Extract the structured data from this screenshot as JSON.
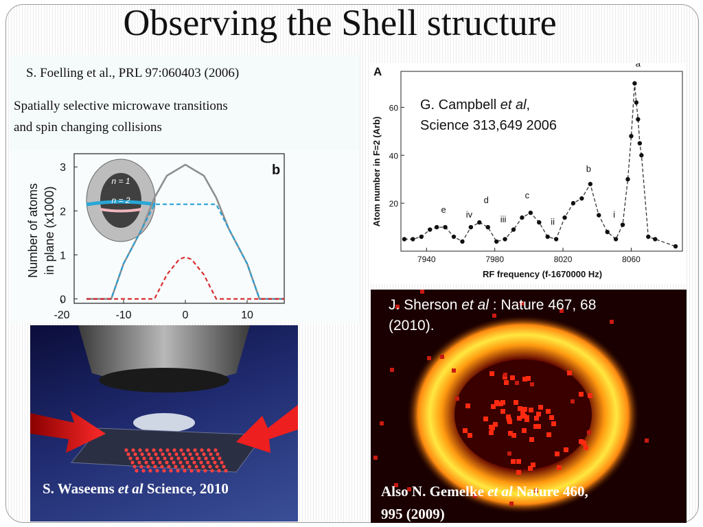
{
  "slide": {
    "title": "Observing the Shell structure"
  },
  "foelling": {
    "citation": "S. Foelling et al., PRL 97:060403 (2006)",
    "desc_line1": "Spatially selective  microwave transitions",
    "desc_line2": "and spin changing collisions",
    "panel_label": "b",
    "y_axis_label_1": "Number of atoms",
    "y_axis_label_2": "in plane (x1000)",
    "y_ticks": [
      "0",
      "1",
      "2",
      "3"
    ],
    "x_ticks": [
      "-20",
      "-10",
      "0",
      "10"
    ],
    "inset_n1": "n = 1",
    "inset_n2": "n = 2"
  },
  "campbell": {
    "panel_label": "A",
    "citation_line1_pre": "G. Campbell ",
    "citation_line1_em": "et al",
    "citation_line1_post": ",",
    "citation_line2": "Science 313,649 2006",
    "y_axis_label": "Atom number in F=2 (Arb)",
    "x_axis_label": "RF frequency (f-1670000 Hz)",
    "y_ticks": [
      "20",
      "40",
      "60"
    ],
    "x_ticks": [
      "7940",
      "7980",
      "8020",
      "8060"
    ],
    "peak_labels": [
      "e",
      "iv",
      "d",
      "iii",
      "c",
      "ii",
      "b",
      "i",
      "a"
    ]
  },
  "sherson": {
    "citation_pre": "J. Sherson ",
    "citation_em": "et al",
    "citation_post": " : Nature 467, 68",
    "citation_line2": "(2010).",
    "also_pre": "Also  N.  Gemelke ",
    "also_em": "et al",
    "also_post": "  Nature 460,",
    "also_line2": "995 (2009)"
  },
  "waseem": {
    "citation_pre": "S. Waseems ",
    "citation_em": "et al",
    "citation_post": " Science, 2010"
  },
  "chart_data": [
    {
      "type": "line",
      "title": "",
      "xlabel": "",
      "ylabel": "Number of atoms in plane (x1000)",
      "xlim": [
        -18,
        16
      ],
      "ylim": [
        -0.1,
        3.3
      ],
      "series": [
        {
          "x": [
            -16,
            -12,
            -10,
            -7,
            -5,
            -3,
            0,
            3,
            5,
            7,
            10,
            12,
            16
          ],
          "y": [
            0,
            0,
            0.8,
            1.6,
            2.3,
            2.8,
            3.05,
            2.8,
            2.3,
            1.6,
            0.8,
            0,
            0
          ]
        },
        {
          "x": [
            -16,
            -12,
            -10,
            -7,
            -5,
            0,
            5,
            7,
            10,
            12,
            16
          ],
          "y": [
            0,
            0,
            0.8,
            1.6,
            2.15,
            2.15,
            2.15,
            1.6,
            0.8,
            0,
            0
          ]
        },
        {
          "x": [
            -16,
            -5,
            -3,
            -1,
            0,
            1,
            3,
            5,
            16
          ],
          "y": [
            0,
            0,
            0.55,
            0.9,
            0.95,
            0.9,
            0.55,
            0,
            0
          ]
        }
      ]
    },
    {
      "type": "scatter",
      "title": "",
      "xlabel": "RF frequency (f-1670000 Hz)",
      "ylabel": "Atom number in F=2 (Arb)",
      "xlim": [
        7925,
        8090
      ],
      "ylim": [
        0,
        75
      ],
      "series": [
        {
          "x": [
            7927,
            7932,
            7937,
            7942,
            7946,
            7951,
            7956,
            7961,
            7966,
            7971,
            7976,
            7981,
            7986,
            7991,
            7996,
            8001,
            8006,
            8011,
            8016,
            8021,
            8026,
            8031,
            8036,
            8041,
            8046,
            8051,
            8055,
            8058,
            8060,
            8062,
            8063,
            8064,
            8065,
            8066,
            8070,
            8074,
            8086
          ],
          "y": [
            5,
            5,
            6,
            9,
            10,
            10,
            6,
            4,
            10,
            12,
            10,
            4,
            5,
            9,
            14,
            16,
            12,
            6,
            5,
            14,
            20,
            22,
            28,
            15,
            8,
            5,
            11,
            30,
            48,
            70,
            62,
            55,
            45,
            40,
            6,
            5,
            2
          ]
        }
      ]
    }
  ]
}
